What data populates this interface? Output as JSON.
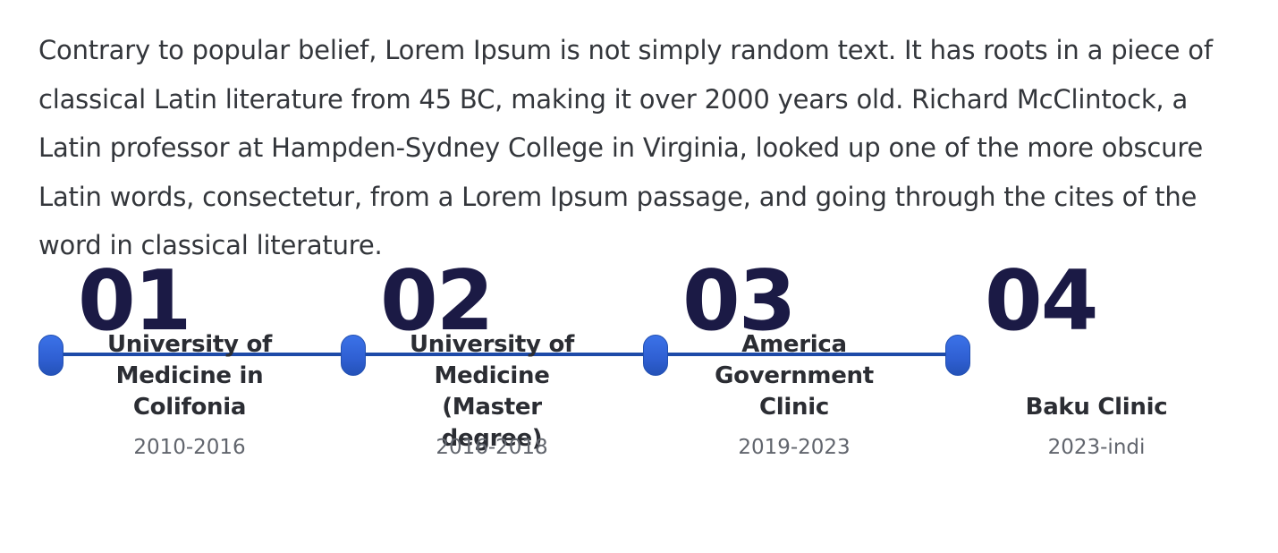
{
  "intro": {
    "text": "Contrary to popular belief, Lorem Ipsum is not simply random text. It has roots in a piece of classical Latin literature from 45 BC, making it over 2000 years old. Richard McClintock, a Latin professor at Hampden-Sydney College in Virginia, looked up one of the more obscure Latin words, consectetur, from a Lorem Ipsum passage, and going through the cites of the word in classical literature."
  },
  "timeline": {
    "steps": [
      {
        "number": "01",
        "title": "University of Medicine in Colifonia",
        "years": "2010-2016"
      },
      {
        "number": "02",
        "title": "University of Medicine (Master degree)",
        "years": "2016-2018"
      },
      {
        "number": "03",
        "title": "America Government Clinic",
        "years": "2019-2023"
      },
      {
        "number": "04",
        "title": "Baku Clinic",
        "years": "2023-indi"
      }
    ]
  },
  "colors": {
    "number": "#1b1a45",
    "line": "#1d4aa8",
    "dot": "#3b72e8",
    "title": "#2b2d33",
    "years": "#61656d",
    "body_text": "#33363b"
  }
}
